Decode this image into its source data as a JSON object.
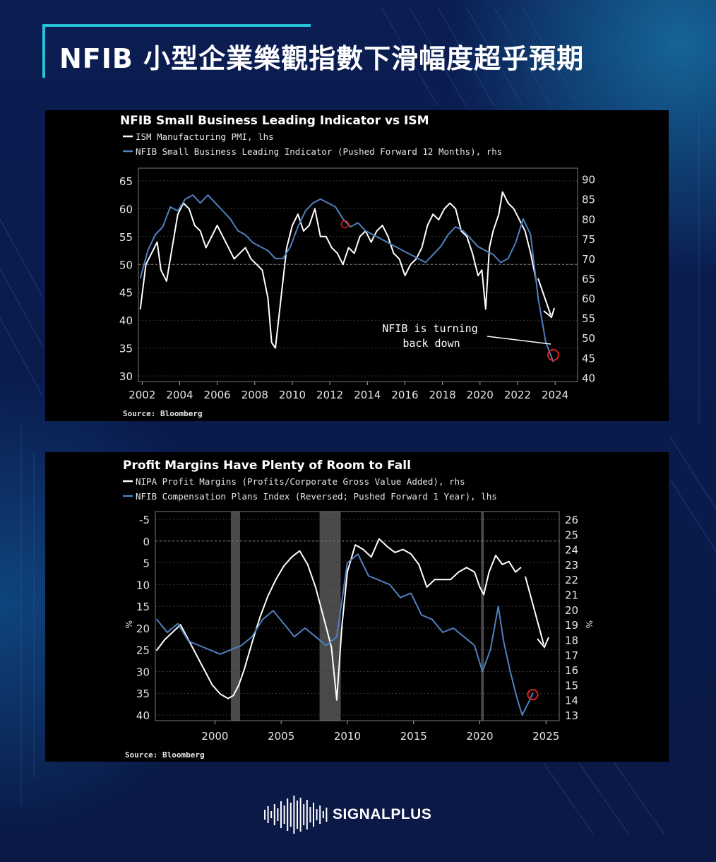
{
  "page": {
    "title": "NFIB 小型企業樂觀指數下滑幅度超乎預期",
    "brand": "SIGNALPLUS",
    "colors": {
      "background": "#0b1a4a",
      "accent": "#27c2d8",
      "white_series": "#ffffff",
      "blue_series": "#4f81c0",
      "panel": "#000000"
    }
  },
  "chart_data": [
    {
      "type": "line",
      "title": "NFIB Small Business Leading Indicator vs ISM",
      "source": "Source: Bloomberg",
      "annotation": [
        "NFIB is turning",
        "back down"
      ],
      "x_ticks": [
        "2002",
        "2004",
        "2006",
        "2008",
        "2010",
        "2012",
        "2014",
        "2016",
        "2018",
        "2020",
        "2022",
        "2024"
      ],
      "xlim": [
        2001.8,
        2025.2
      ],
      "ylim_left": [
        29,
        66
      ],
      "yticks_left": [
        "65",
        "60",
        "55",
        "50",
        "45",
        "40",
        "35",
        "30"
      ],
      "ylim_right": [
        39,
        91
      ],
      "yticks_right": [
        "90",
        "85",
        "80",
        "75",
        "70",
        "65",
        "60",
        "55",
        "50",
        "45",
        "40"
      ],
      "reference_line_left": 50,
      "series": [
        {
          "name": "ISM Manufacturing PMI, lhs",
          "axis": "left",
          "color": "#ffffff",
          "x": [
            2001.9,
            2002.2,
            2002.5,
            2002.8,
            2003.0,
            2003.3,
            2003.6,
            2003.9,
            2004.2,
            2004.5,
            2004.8,
            2005.1,
            2005.4,
            2005.7,
            2006.0,
            2006.3,
            2006.6,
            2006.9,
            2007.2,
            2007.5,
            2007.8,
            2008.1,
            2008.4,
            2008.7,
            2008.9,
            2009.1,
            2009.4,
            2009.7,
            2010.0,
            2010.3,
            2010.6,
            2010.9,
            2011.2,
            2011.5,
            2011.8,
            2012.1,
            2012.4,
            2012.7,
            2013.0,
            2013.3,
            2013.6,
            2013.9,
            2014.2,
            2014.5,
            2014.8,
            2015.1,
            2015.4,
            2015.7,
            2016.0,
            2016.3,
            2016.6,
            2016.9,
            2017.2,
            2017.5,
            2017.8,
            2018.1,
            2018.4,
            2018.7,
            2019.0,
            2019.3,
            2019.6,
            2019.9,
            2020.1,
            2020.3,
            2020.5,
            2020.7,
            2021.0,
            2021.2,
            2021.5,
            2021.8,
            2022.1,
            2022.4,
            2022.7,
            2023.0
          ],
          "y": [
            42,
            50,
            52,
            54,
            49,
            47,
            53,
            59,
            61,
            60,
            57,
            56,
            53,
            55,
            57,
            55,
            53,
            51,
            52,
            53,
            51,
            50,
            49,
            44,
            36,
            35,
            44,
            53,
            57,
            59,
            56,
            57,
            60,
            55,
            55,
            53,
            52,
            50,
            53,
            52,
            55,
            56,
            54,
            56,
            57,
            55,
            52,
            51,
            48,
            50,
            51,
            53,
            57,
            59,
            58,
            60,
            61,
            60,
            56,
            55,
            52,
            48,
            49,
            42,
            53,
            56,
            59,
            63,
            61,
            60,
            58,
            56,
            52,
            47
          ]
        },
        {
          "name": "NFIB Small Business Leading Indicator (Pushed Forward 12 Months), rhs",
          "axis": "right",
          "color": "#4f81c0",
          "x": [
            2001.9,
            2002.3,
            2002.7,
            2003.1,
            2003.5,
            2003.9,
            2004.3,
            2004.7,
            2005.1,
            2005.5,
            2005.9,
            2006.3,
            2006.7,
            2007.1,
            2007.5,
            2007.9,
            2008.3,
            2008.7,
            2009.1,
            2009.5,
            2009.9,
            2010.3,
            2010.7,
            2011.1,
            2011.5,
            2011.9,
            2012.3,
            2012.7,
            2013.1,
            2013.5,
            2013.9,
            2014.3,
            2014.7,
            2015.1,
            2015.5,
            2015.9,
            2016.3,
            2016.7,
            2017.1,
            2017.5,
            2017.9,
            2018.3,
            2018.7,
            2019.1,
            2019.5,
            2019.9,
            2020.3,
            2020.7,
            2021.1,
            2021.5,
            2021.9,
            2022.3,
            2022.7,
            2023.1,
            2023.5,
            2023.9
          ],
          "y": [
            65,
            72,
            76,
            78,
            83,
            82,
            85,
            86,
            84,
            86,
            84,
            82,
            80,
            77,
            76,
            74,
            73,
            72,
            70,
            70,
            73,
            78,
            82,
            84,
            85,
            84,
            83,
            80,
            78,
            79,
            77,
            76,
            75,
            74,
            73,
            72,
            71,
            70,
            69,
            71,
            73,
            76,
            78,
            77,
            75,
            73,
            72,
            71,
            69,
            70,
            74,
            80,
            76,
            60,
            49,
            44
          ]
        }
      ]
    },
    {
      "type": "line",
      "title": "Profit Margins Have Plenty of Room to Fall",
      "source": "Source: Bloomberg",
      "left_axis_unit": "%",
      "right_axis_unit": "%",
      "recession_shading": [
        [
          2001.2,
          2001.9
        ],
        [
          2007.9,
          2009.5
        ],
        [
          2020.1,
          2020.3
        ]
      ],
      "x_ticks": [
        "2000",
        "2005",
        "2010",
        "2015",
        "2020",
        "2025"
      ],
      "xlim": [
        1995.5,
        2026.0
      ],
      "ylim_left_reversed": [
        -6,
        42
      ],
      "yticks_left": [
        "-5",
        "0",
        "5",
        "10",
        "15",
        "20",
        "25",
        "30",
        "35",
        "40"
      ],
      "ylim_right": [
        12.5,
        26.5
      ],
      "yticks_right": [
        "26",
        "25",
        "24",
        "23",
        "22",
        "21",
        "20",
        "19",
        "18",
        "17",
        "16",
        "15",
        "14",
        "13"
      ],
      "reference_line_left": 0,
      "series": [
        {
          "name": "NIPA Profit Margins (Profits/Corporate Gross Value Added), rhs",
          "axis": "right",
          "color": "#ffffff",
          "x": [
            1995.6,
            1996.2,
            1996.8,
            1997.4,
            1998.0,
            1998.6,
            1999.2,
            1999.8,
            2000.4,
            2001.0,
            2001.4,
            2001.8,
            2002.2,
            2002.8,
            2003.4,
            2004.0,
            2004.6,
            2005.2,
            2005.8,
            2006.4,
            2007.0,
            2007.6,
            2008.2,
            2008.8,
            2009.2,
            2009.6,
            2010.0,
            2010.6,
            2011.2,
            2011.8,
            2012.4,
            2013.0,
            2013.6,
            2014.2,
            2014.8,
            2015.4,
            2016.0,
            2016.6,
            2017.2,
            2017.8,
            2018.4,
            2019.0,
            2019.6,
            2020.0,
            2020.3,
            2020.7,
            2021.2,
            2021.7,
            2022.2,
            2022.7,
            2023.1
          ],
          "y": [
            17.3,
            18.0,
            18.5,
            19.0,
            18.0,
            17.0,
            16.0,
            15.0,
            14.4,
            14.1,
            14.3,
            15.0,
            16.0,
            17.8,
            19.5,
            20.9,
            22.0,
            22.9,
            23.5,
            23.9,
            23.0,
            21.5,
            19.5,
            17.5,
            14.0,
            19.0,
            22.5,
            24.3,
            24.0,
            23.5,
            24.7,
            24.2,
            23.8,
            24.0,
            23.7,
            23.0,
            21.5,
            22.0,
            22.0,
            22.0,
            22.5,
            22.8,
            22.5,
            21.5,
            21.0,
            22.5,
            23.6,
            23.0,
            23.2,
            22.5,
            22.8
          ]
        },
        {
          "name": "NFIB Compensation Plans Index (Reversed; Pushed Forward 1 Year), lhs",
          "axis": "left",
          "color": "#4f81c0",
          "x": [
            1995.6,
            1996.4,
            1997.2,
            1998.0,
            1998.8,
            1999.6,
            2000.4,
            2001.2,
            2002.0,
            2002.8,
            2003.6,
            2004.4,
            2005.2,
            2006.0,
            2006.8,
            2007.6,
            2008.4,
            2009.2,
            2010.0,
            2010.8,
            2011.6,
            2012.4,
            2013.2,
            2014.0,
            2014.8,
            2015.6,
            2016.4,
            2017.2,
            2018.0,
            2018.8,
            2019.6,
            2020.2,
            2020.8,
            2021.4,
            2021.8,
            2022.3,
            2022.8,
            2023.2,
            2023.7,
            2024.0
          ],
          "y": [
            18,
            21,
            19,
            23,
            24,
            25,
            26,
            25,
            24,
            22,
            18,
            16,
            19,
            22,
            20,
            22,
            24,
            22,
            5,
            3,
            8,
            9,
            10,
            13,
            12,
            17,
            18,
            21,
            20,
            22,
            24,
            30,
            25,
            15,
            23,
            30,
            36,
            40,
            37,
            35
          ]
        }
      ]
    }
  ]
}
